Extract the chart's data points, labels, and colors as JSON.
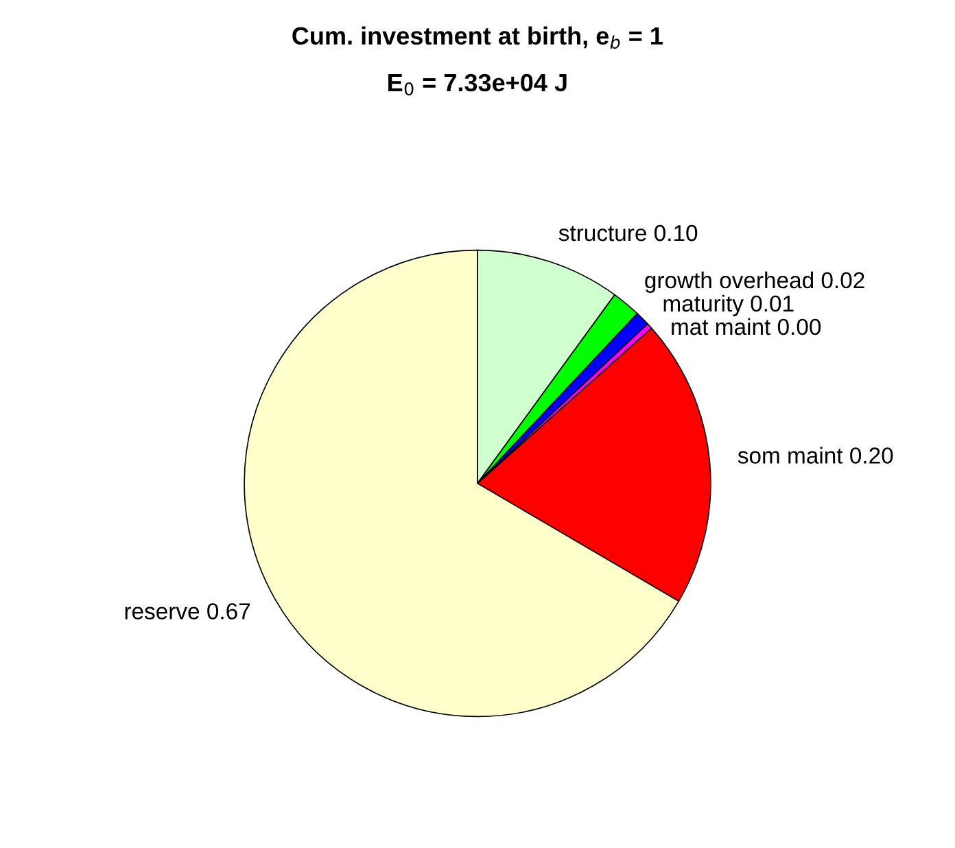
{
  "chart_data": {
    "type": "pie",
    "title": "Cum. investment at birth, e$_{b}$ = 1",
    "subtitle": "E$_{0}$ = 7.33e+04 J",
    "categories": [
      "structure",
      "growth overhead",
      "maturity",
      "mat maint",
      "som maint",
      "reserve"
    ],
    "values": [
      0.1,
      0.02,
      0.01,
      0.004,
      0.2,
      0.665
    ],
    "value_labels": [
      "0.10",
      "0.02",
      "0.01",
      "0.00",
      "0.20",
      "0.67"
    ],
    "colors": [
      "#d0ffd0",
      "#00ff00",
      "#0000ff",
      "#ff00ff",
      "#ff0000",
      "#ffffcc"
    ],
    "legend": false
  }
}
